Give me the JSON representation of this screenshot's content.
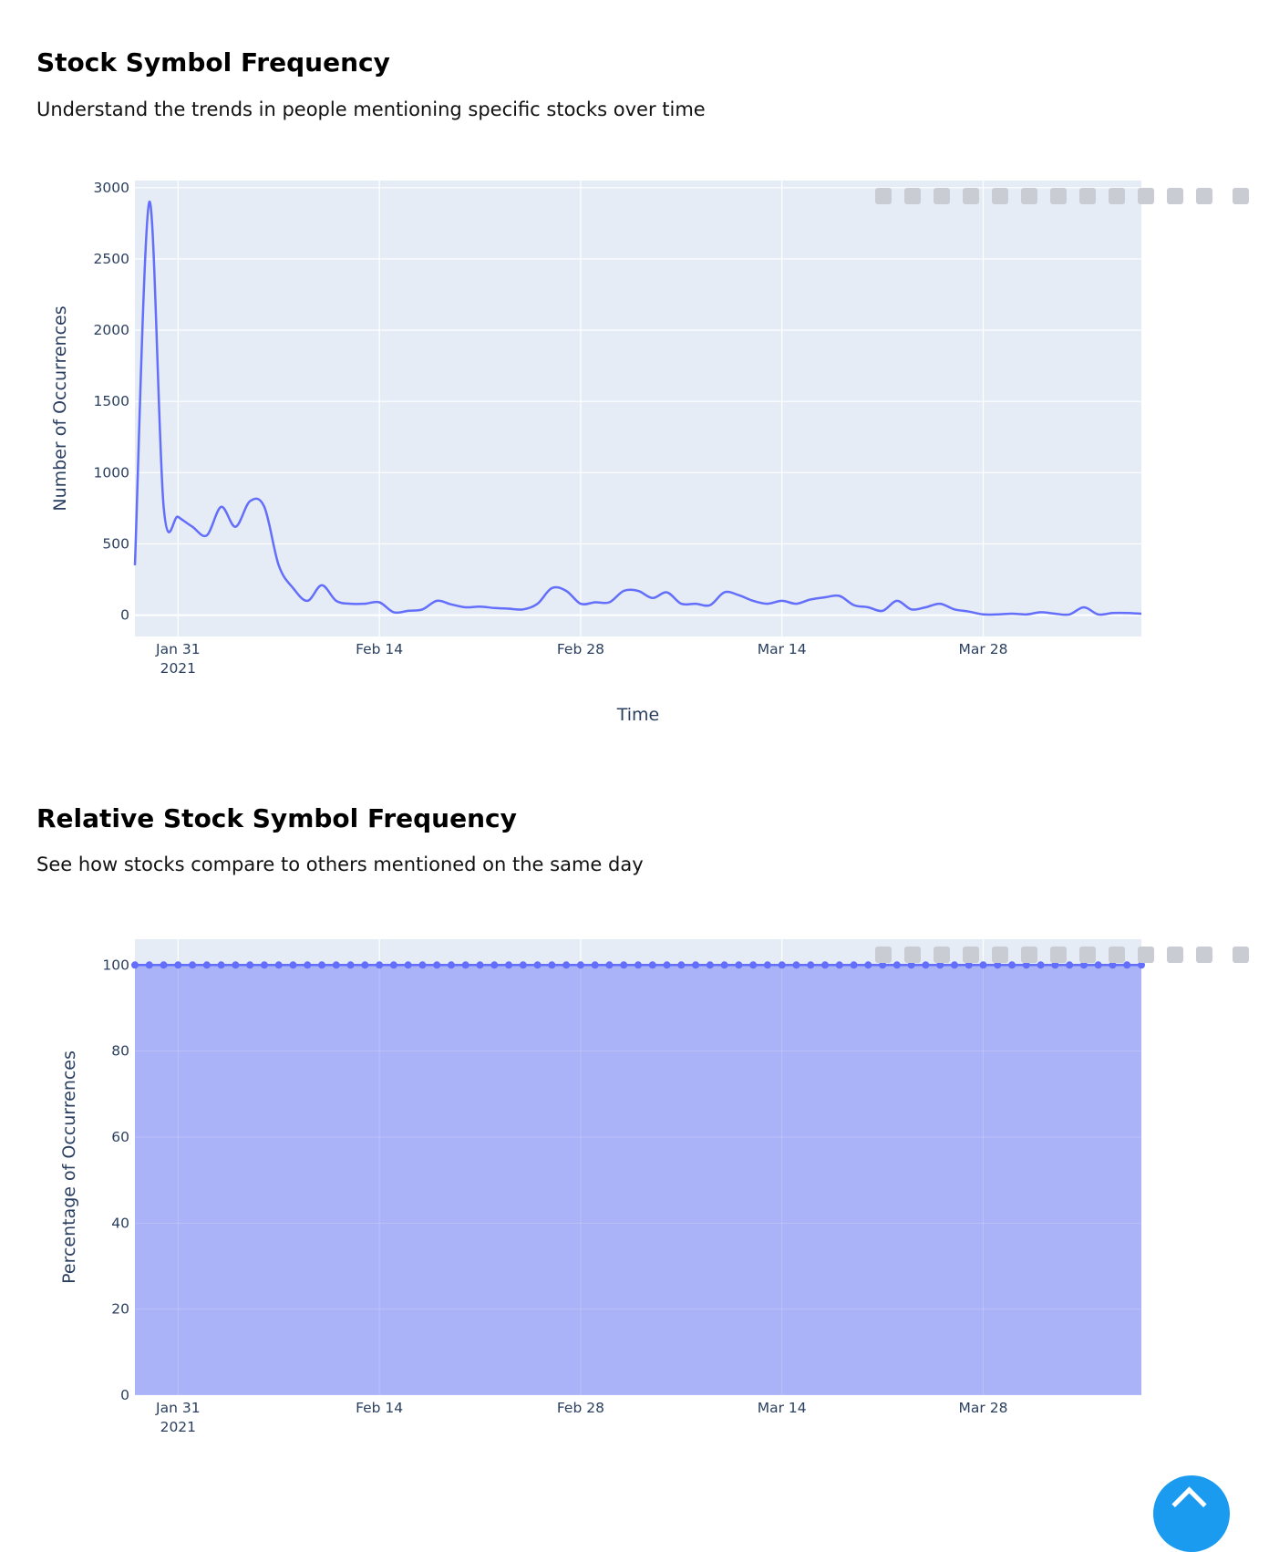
{
  "sections": [
    {
      "title": "Stock Symbol Frequency",
      "description": "Understand the trends in people mentioning specific stocks over time"
    },
    {
      "title": "Relative Stock Symbol Frequency",
      "description": "See how stocks compare to others mentioned on the same day"
    }
  ],
  "modebar_icons": [
    "camera-icon",
    "zoom-icon",
    "pan-icon",
    "box-select-icon",
    "lasso-icon",
    "zoom-in-icon",
    "zoom-out-icon",
    "autoscale-icon",
    "home-icon",
    "spike-lines-icon",
    "hover-closest-icon",
    "hover-compare-icon",
    "plotly-logo-icon"
  ],
  "colors": {
    "line": "#636efa",
    "fill": "#a5acf7",
    "plot_bg": "#e5ecf6",
    "scroll_button": "#1a9bf0"
  },
  "chart_data": [
    {
      "type": "line",
      "shape": "spline",
      "xlabel": "Time",
      "ylabel": "Number of Occurrences",
      "x_range": [
        "2021-01-28",
        "2021-04-08"
      ],
      "ylim": [
        -150,
        3050
      ],
      "yticks": [
        0,
        500,
        1000,
        1500,
        2000,
        2500,
        3000
      ],
      "x_tick_labels": [
        {
          "date": "2021-01-31",
          "label": "Jan 31",
          "sub": "2021"
        },
        {
          "date": "2021-02-14",
          "label": "Feb 14"
        },
        {
          "date": "2021-02-28",
          "label": "Feb 28"
        },
        {
          "date": "2021-03-14",
          "label": "Mar 14"
        },
        {
          "date": "2021-03-28",
          "label": "Mar 28"
        }
      ],
      "grid": true,
      "start_date": "2021-01-28",
      "x": [
        "2021-01-28",
        "2021-01-29",
        "2021-01-30",
        "2021-01-31",
        "2021-02-01",
        "2021-02-02",
        "2021-02-03",
        "2021-02-04",
        "2021-02-05",
        "2021-02-06",
        "2021-02-07",
        "2021-02-08",
        "2021-02-09",
        "2021-02-10",
        "2021-02-11",
        "2021-02-12",
        "2021-02-13",
        "2021-02-14",
        "2021-02-15",
        "2021-02-16",
        "2021-02-17",
        "2021-02-18",
        "2021-02-19",
        "2021-02-20",
        "2021-02-21",
        "2021-02-22",
        "2021-02-23",
        "2021-02-24",
        "2021-02-25",
        "2021-02-26",
        "2021-02-27",
        "2021-02-28",
        "2021-03-01",
        "2021-03-02",
        "2021-03-03",
        "2021-03-04",
        "2021-03-05",
        "2021-03-06",
        "2021-03-07",
        "2021-03-08",
        "2021-03-09",
        "2021-03-10",
        "2021-03-11",
        "2021-03-12",
        "2021-03-13",
        "2021-03-14",
        "2021-03-15",
        "2021-03-16",
        "2021-03-17",
        "2021-03-18",
        "2021-03-19",
        "2021-03-20",
        "2021-03-21",
        "2021-03-22",
        "2021-03-23",
        "2021-03-24",
        "2021-03-25",
        "2021-03-26",
        "2021-03-27",
        "2021-03-28",
        "2021-03-29",
        "2021-03-30",
        "2021-03-31",
        "2021-04-01",
        "2021-04-02",
        "2021-04-03",
        "2021-04-04",
        "2021-04-05",
        "2021-04-06",
        "2021-04-07",
        "2021-04-08"
      ],
      "values": [
        350,
        2900,
        760,
        690,
        620,
        560,
        760,
        620,
        800,
        760,
        350,
        190,
        100,
        210,
        100,
        80,
        80,
        90,
        20,
        30,
        40,
        100,
        75,
        55,
        60,
        50,
        45,
        40,
        80,
        190,
        170,
        80,
        90,
        90,
        170,
        170,
        120,
        160,
        80,
        80,
        70,
        160,
        140,
        100,
        80,
        100,
        80,
        110,
        125,
        135,
        70,
        55,
        30,
        100,
        40,
        55,
        80,
        40,
        25,
        5,
        5,
        10,
        5,
        20,
        10,
        5,
        55,
        5,
        15,
        15,
        10
      ]
    },
    {
      "type": "area",
      "markers": true,
      "xlabel": "Time",
      "ylabel": "Percentage of Occurrences",
      "x_range": [
        "2021-01-28",
        "2021-04-08"
      ],
      "ylim": [
        0,
        106
      ],
      "yticks": [
        0,
        20,
        40,
        60,
        80,
        100
      ],
      "x_tick_labels": [
        {
          "date": "2021-01-31",
          "label": "Jan 31",
          "sub": "2021"
        },
        {
          "date": "2021-02-14",
          "label": "Feb 14"
        },
        {
          "date": "2021-02-28",
          "label": "Feb 28"
        },
        {
          "date": "2021-03-14",
          "label": "Mar 14"
        },
        {
          "date": "2021-03-28",
          "label": "Mar 28"
        }
      ],
      "grid": true,
      "start_date": "2021-01-28",
      "x": [
        "2021-01-28",
        "2021-01-29",
        "2021-01-30",
        "2021-01-31",
        "2021-02-01",
        "2021-02-02",
        "2021-02-03",
        "2021-02-04",
        "2021-02-05",
        "2021-02-06",
        "2021-02-07",
        "2021-02-08",
        "2021-02-09",
        "2021-02-10",
        "2021-02-11",
        "2021-02-12",
        "2021-02-13",
        "2021-02-14",
        "2021-02-15",
        "2021-02-16",
        "2021-02-17",
        "2021-02-18",
        "2021-02-19",
        "2021-02-20",
        "2021-02-21",
        "2021-02-22",
        "2021-02-23",
        "2021-02-24",
        "2021-02-25",
        "2021-02-26",
        "2021-02-27",
        "2021-02-28",
        "2021-03-01",
        "2021-03-02",
        "2021-03-03",
        "2021-03-04",
        "2021-03-05",
        "2021-03-06",
        "2021-03-07",
        "2021-03-08",
        "2021-03-09",
        "2021-03-10",
        "2021-03-11",
        "2021-03-12",
        "2021-03-13",
        "2021-03-14",
        "2021-03-15",
        "2021-03-16",
        "2021-03-17",
        "2021-03-18",
        "2021-03-19",
        "2021-03-20",
        "2021-03-21",
        "2021-03-22",
        "2021-03-23",
        "2021-03-24",
        "2021-03-25",
        "2021-03-26",
        "2021-03-27",
        "2021-03-28",
        "2021-03-29",
        "2021-03-30",
        "2021-03-31",
        "2021-04-01",
        "2021-04-02",
        "2021-04-03",
        "2021-04-04",
        "2021-04-05",
        "2021-04-06",
        "2021-04-07",
        "2021-04-08"
      ],
      "values": [
        100,
        100,
        100,
        100,
        100,
        100,
        100,
        100,
        100,
        100,
        100,
        100,
        100,
        100,
        100,
        100,
        100,
        100,
        100,
        100,
        100,
        100,
        100,
        100,
        100,
        100,
        100,
        100,
        100,
        100,
        100,
        100,
        100,
        100,
        100,
        100,
        100,
        100,
        100,
        100,
        100,
        100,
        100,
        100,
        100,
        100,
        100,
        100,
        100,
        100,
        100,
        100,
        100,
        100,
        100,
        100,
        100,
        100,
        100,
        100,
        100,
        100,
        100,
        100,
        100,
        100,
        100,
        100,
        100,
        100,
        100
      ]
    }
  ]
}
